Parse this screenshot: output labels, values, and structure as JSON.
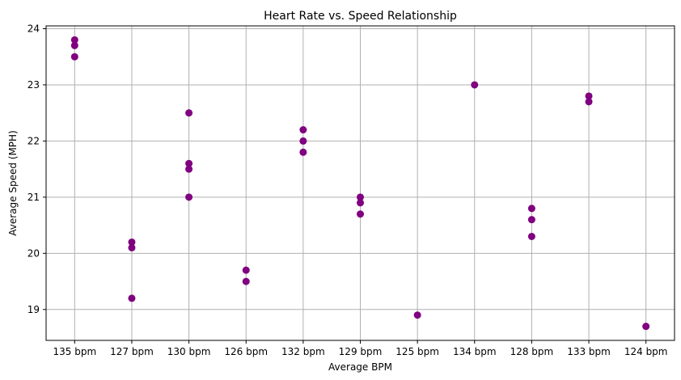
{
  "chart_data": {
    "type": "scatter",
    "title": "Heart Rate vs. Speed Relationship",
    "xlabel": "Average BPM",
    "ylabel": "Average Speed (MPH)",
    "categories": [
      "135 bpm",
      "127 bpm",
      "130 bpm",
      "126 bpm",
      "132 bpm",
      "129 bpm",
      "125 bpm",
      "134 bpm",
      "128 bpm",
      "133 bpm",
      "124 bpm"
    ],
    "points": [
      {
        "x": "135 bpm",
        "y": 23.8
      },
      {
        "x": "135 bpm",
        "y": 23.7
      },
      {
        "x": "135 bpm",
        "y": 23.5
      },
      {
        "x": "127 bpm",
        "y": 20.2
      },
      {
        "x": "127 bpm",
        "y": 20.1
      },
      {
        "x": "127 bpm",
        "y": 19.2
      },
      {
        "x": "130 bpm",
        "y": 22.5
      },
      {
        "x": "130 bpm",
        "y": 21.6
      },
      {
        "x": "130 bpm",
        "y": 21.5
      },
      {
        "x": "130 bpm",
        "y": 21.0
      },
      {
        "x": "126 bpm",
        "y": 19.7
      },
      {
        "x": "126 bpm",
        "y": 19.5
      },
      {
        "x": "132 bpm",
        "y": 22.2
      },
      {
        "x": "132 bpm",
        "y": 22.0
      },
      {
        "x": "132 bpm",
        "y": 21.8
      },
      {
        "x": "129 bpm",
        "y": 21.0
      },
      {
        "x": "129 bpm",
        "y": 20.9
      },
      {
        "x": "129 bpm",
        "y": 20.7
      },
      {
        "x": "125 bpm",
        "y": 18.9
      },
      {
        "x": "134 bpm",
        "y": 23.0
      },
      {
        "x": "128 bpm",
        "y": 20.8
      },
      {
        "x": "128 bpm",
        "y": 20.6
      },
      {
        "x": "128 bpm",
        "y": 20.3
      },
      {
        "x": "133 bpm",
        "y": 22.8
      },
      {
        "x": "133 bpm",
        "y": 22.7
      },
      {
        "x": "124 bpm",
        "y": 18.7
      }
    ],
    "yticks": [
      19,
      20,
      21,
      22,
      23,
      24
    ],
    "ylim": [
      18.45,
      24.05
    ],
    "grid": true,
    "legend": "none",
    "colors": {
      "marker": "#800080",
      "grid": "#b0b0b0",
      "axis": "#000000"
    }
  }
}
